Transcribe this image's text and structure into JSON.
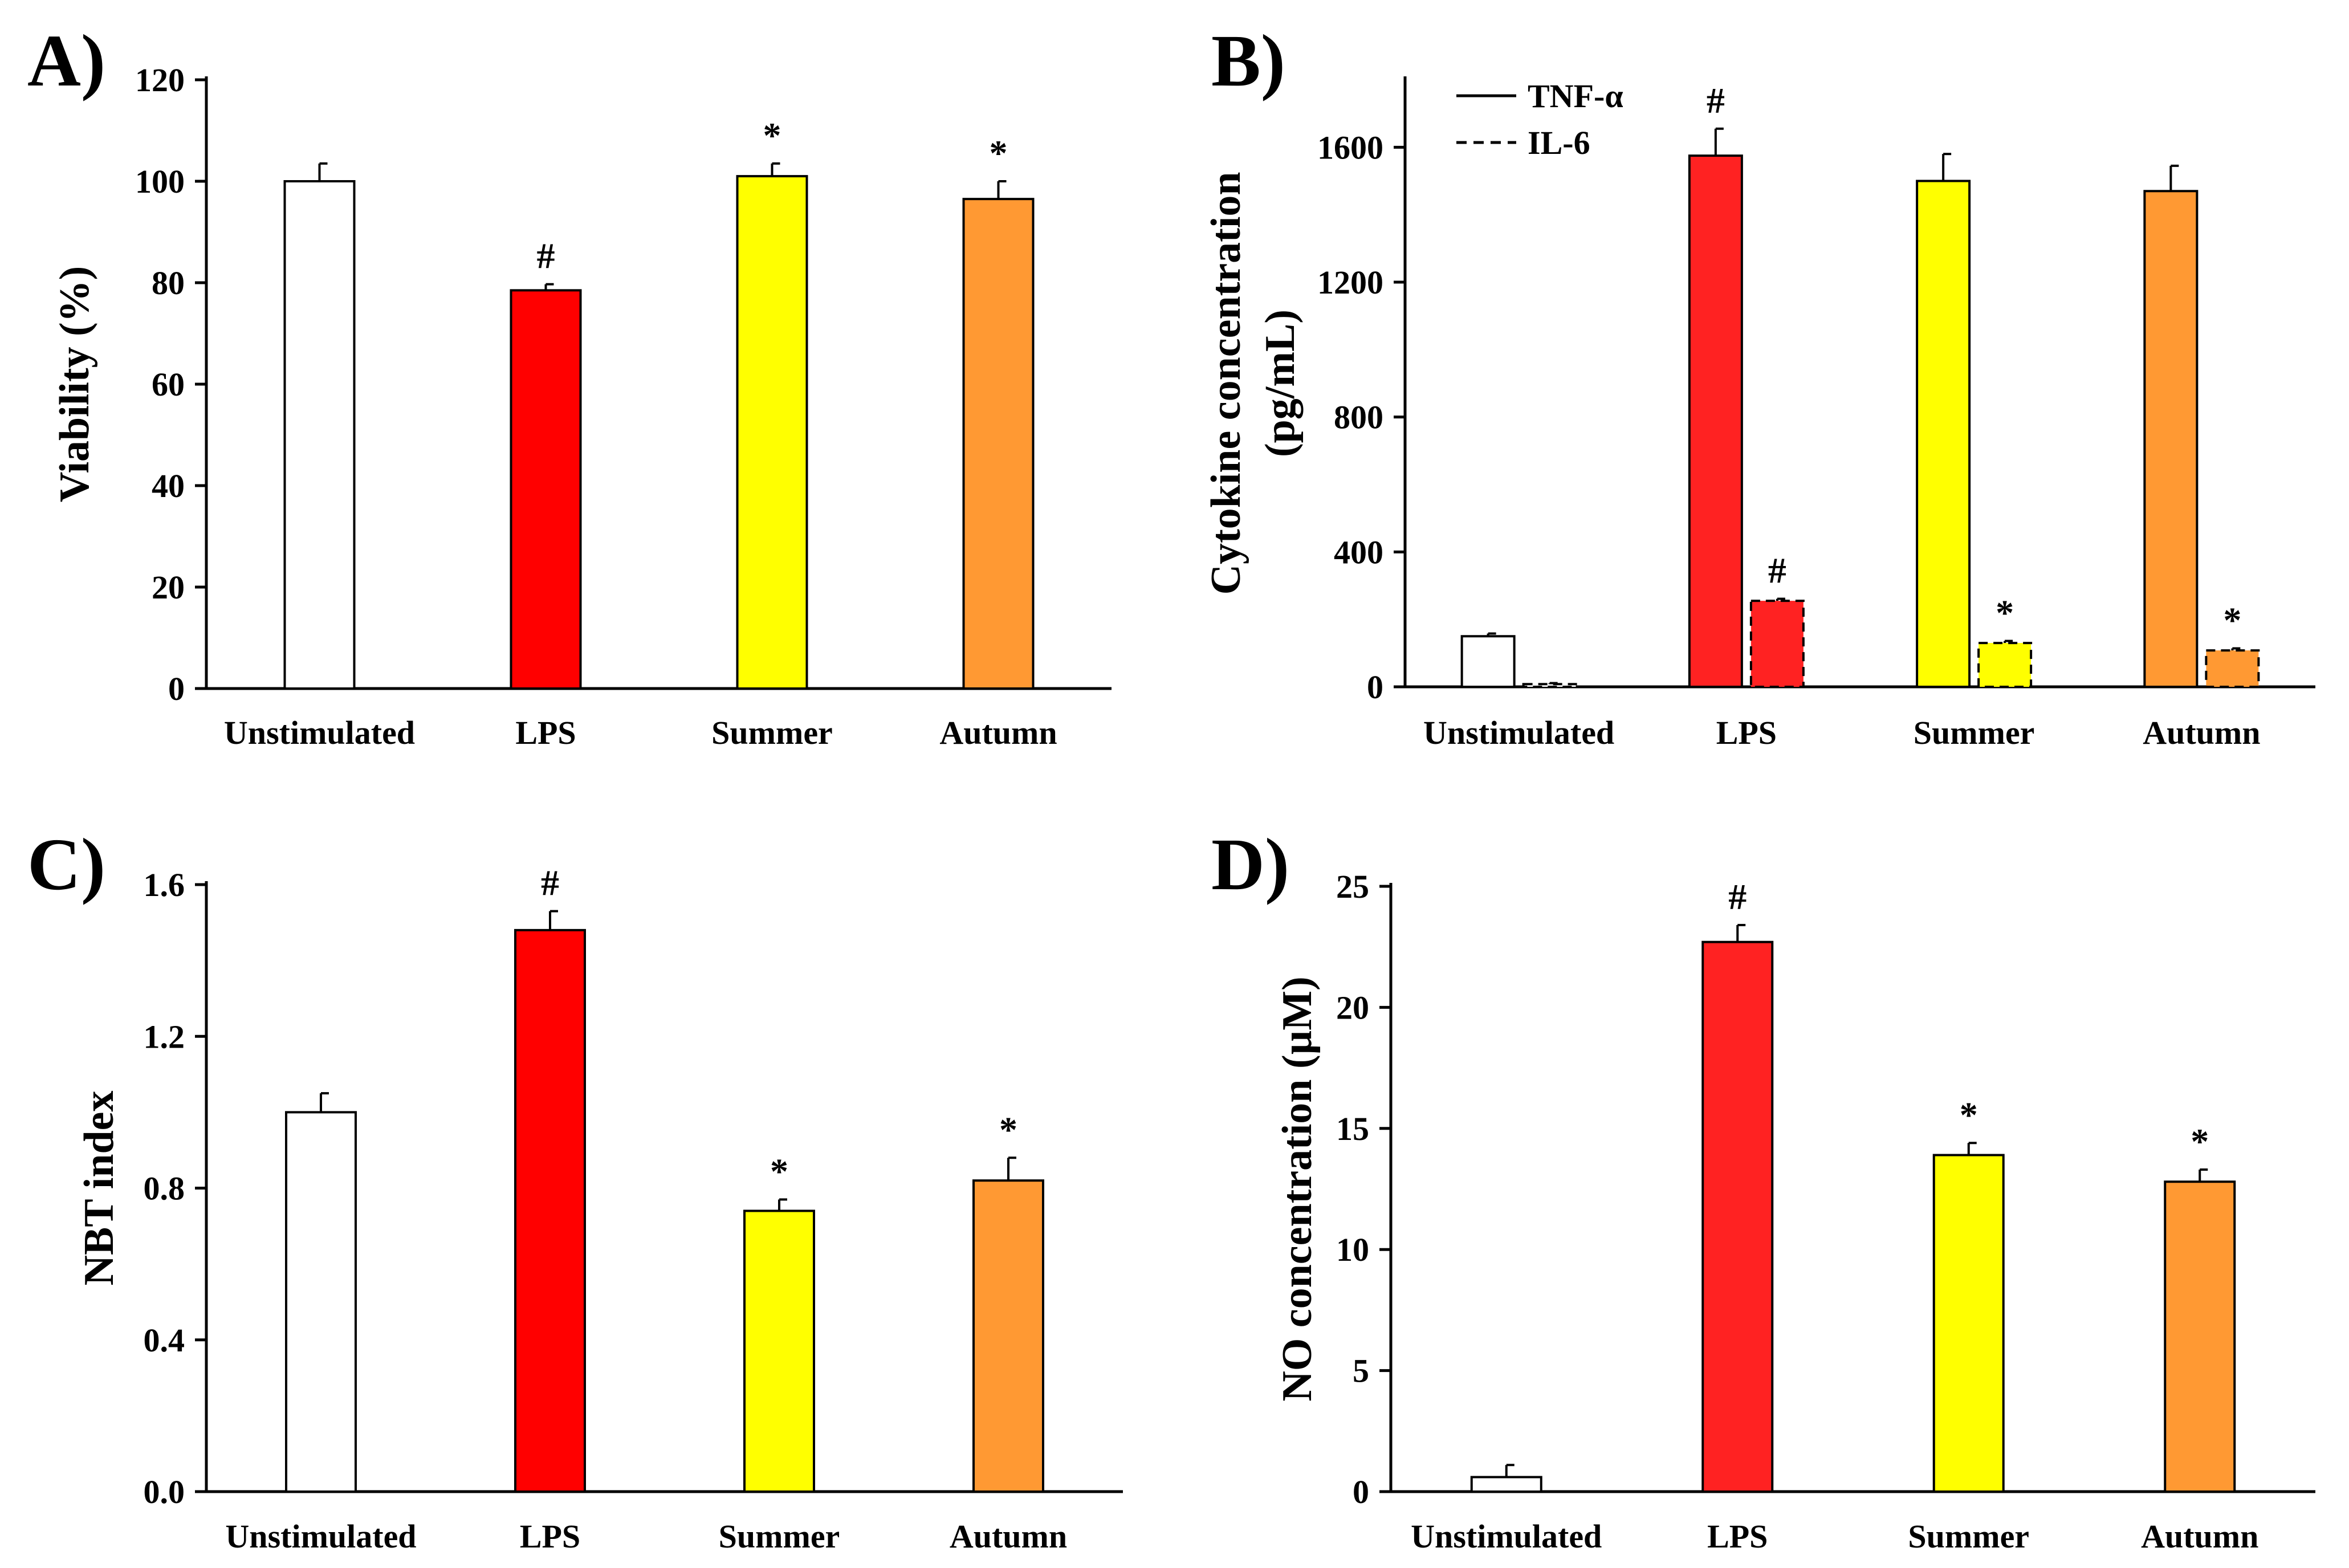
{
  "chart_data": [
    {
      "panel": "A)",
      "type": "bar",
      "ylabel": "Viability (%)",
      "xlabel": "",
      "ylim": [
        0,
        120
      ],
      "yticks": [
        "0",
        "20",
        "40",
        "60",
        "80",
        "100",
        "120"
      ],
      "categories": [
        "Unstimulated",
        "LPS",
        "Summer",
        "Autumn"
      ],
      "series": [
        {
          "name": "Viability",
          "values": [
            100,
            78.5,
            101,
            96.5
          ],
          "errors": [
            3.5,
            1.2,
            2.5,
            3.5
          ],
          "marks": [
            "",
            "#",
            "*",
            "*"
          ],
          "colors": [
            "#FFFFFF",
            "#FF0000",
            "#FFFF00",
            "#FF9933"
          ],
          "dash": false
        }
      ]
    },
    {
      "panel": "B)",
      "type": "bar",
      "ylabel": "Cytokine concentration",
      "ylabel2": "(pg/mL)",
      "xlabel": "",
      "ylim": [
        0,
        1800
      ],
      "yticks": [
        "0",
        "400",
        "800",
        "1200",
        "1600"
      ],
      "categories": [
        "Unstimulated",
        "LPS",
        "Summer",
        "Autumn"
      ],
      "legend": {
        "position": "top-left",
        "entries": [
          "TNF-α",
          "IL-6"
        ]
      },
      "series": [
        {
          "name": "TNF-α",
          "values": [
            150,
            1575,
            1500,
            1470
          ],
          "errors": [
            8,
            80,
            80,
            75
          ],
          "marks": [
            "",
            "#",
            "",
            ""
          ],
          "colors": [
            "#FFFFFF",
            "#FF2222",
            "#FFFF00",
            "#FF9933"
          ],
          "dash": false
        },
        {
          "name": "IL-6",
          "values": [
            8,
            255,
            130,
            108
          ],
          "errors": [
            3,
            6,
            6,
            6
          ],
          "marks": [
            "",
            "#",
            "*",
            "*"
          ],
          "colors": [
            "#FFFFFF",
            "#FF2222",
            "#FFFF00",
            "#FF9933"
          ],
          "dash": true
        }
      ]
    },
    {
      "panel": "C)",
      "type": "bar",
      "ylabel": "NBT index",
      "xlabel": "",
      "ylim": [
        0,
        1.6
      ],
      "yticks": [
        "0.0",
        "0.4",
        "0.8",
        "1.2",
        "1.6"
      ],
      "categories": [
        "Unstimulated",
        "LPS",
        "Summer",
        "Autumn"
      ],
      "series": [
        {
          "name": "NBT index",
          "values": [
            1.0,
            1.48,
            0.74,
            0.82
          ],
          "errors": [
            0.05,
            0.05,
            0.03,
            0.06
          ],
          "marks": [
            "",
            "#",
            "*",
            "*"
          ],
          "colors": [
            "#FFFFFF",
            "#FF0000",
            "#FFFF00",
            "#FF9933"
          ],
          "dash": false
        }
      ]
    },
    {
      "panel": "D)",
      "type": "bar",
      "ylabel": "NO concentration (µM)",
      "xlabel": "",
      "ylim": [
        0,
        25
      ],
      "yticks": [
        "0",
        "5",
        "10",
        "15",
        "20",
        "25"
      ],
      "categories": [
        "Unstimulated",
        "LPS",
        "Summer",
        "Autumn"
      ],
      "series": [
        {
          "name": "NO concentration",
          "values": [
            0.6,
            22.7,
            13.9,
            12.8
          ],
          "errors": [
            0.5,
            0.7,
            0.5,
            0.5
          ],
          "marks": [
            "",
            "#",
            "*",
            "*"
          ],
          "colors": [
            "#FFFFFF",
            "#FF2222",
            "#FFFF00",
            "#FF9933"
          ],
          "dash": false
        }
      ]
    }
  ]
}
